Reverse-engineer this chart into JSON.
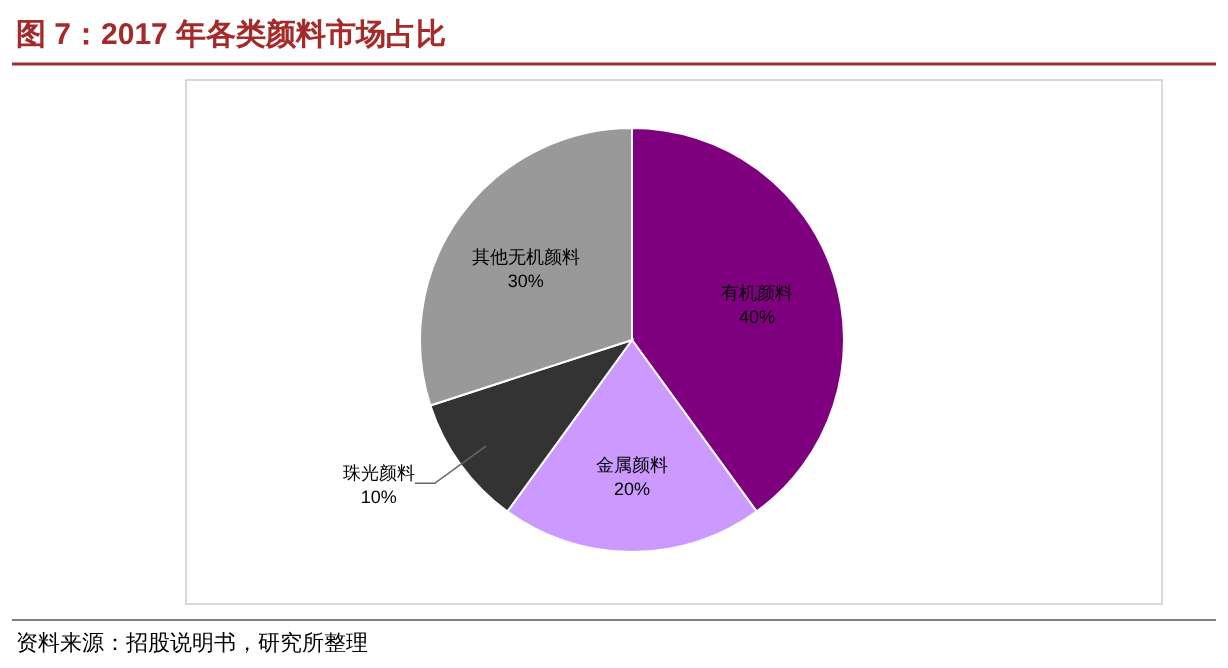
{
  "chart_data": {
    "type": "pie",
    "title": "图 7：2017 年各类颜料市场占比",
    "categories": [
      "有机颜料",
      "金属颜料",
      "珠光颜料",
      "其他无机颜料"
    ],
    "values": [
      40,
      20,
      10,
      30
    ],
    "colors": [
      "#7f007f",
      "#cc99ff",
      "#333333",
      "#999999"
    ],
    "value_labels": [
      "40%",
      "20%",
      "10%",
      "30%"
    ],
    "legend": false,
    "annotations": [
      "资料来源：招股说明书，研究所整理"
    ]
  }
}
